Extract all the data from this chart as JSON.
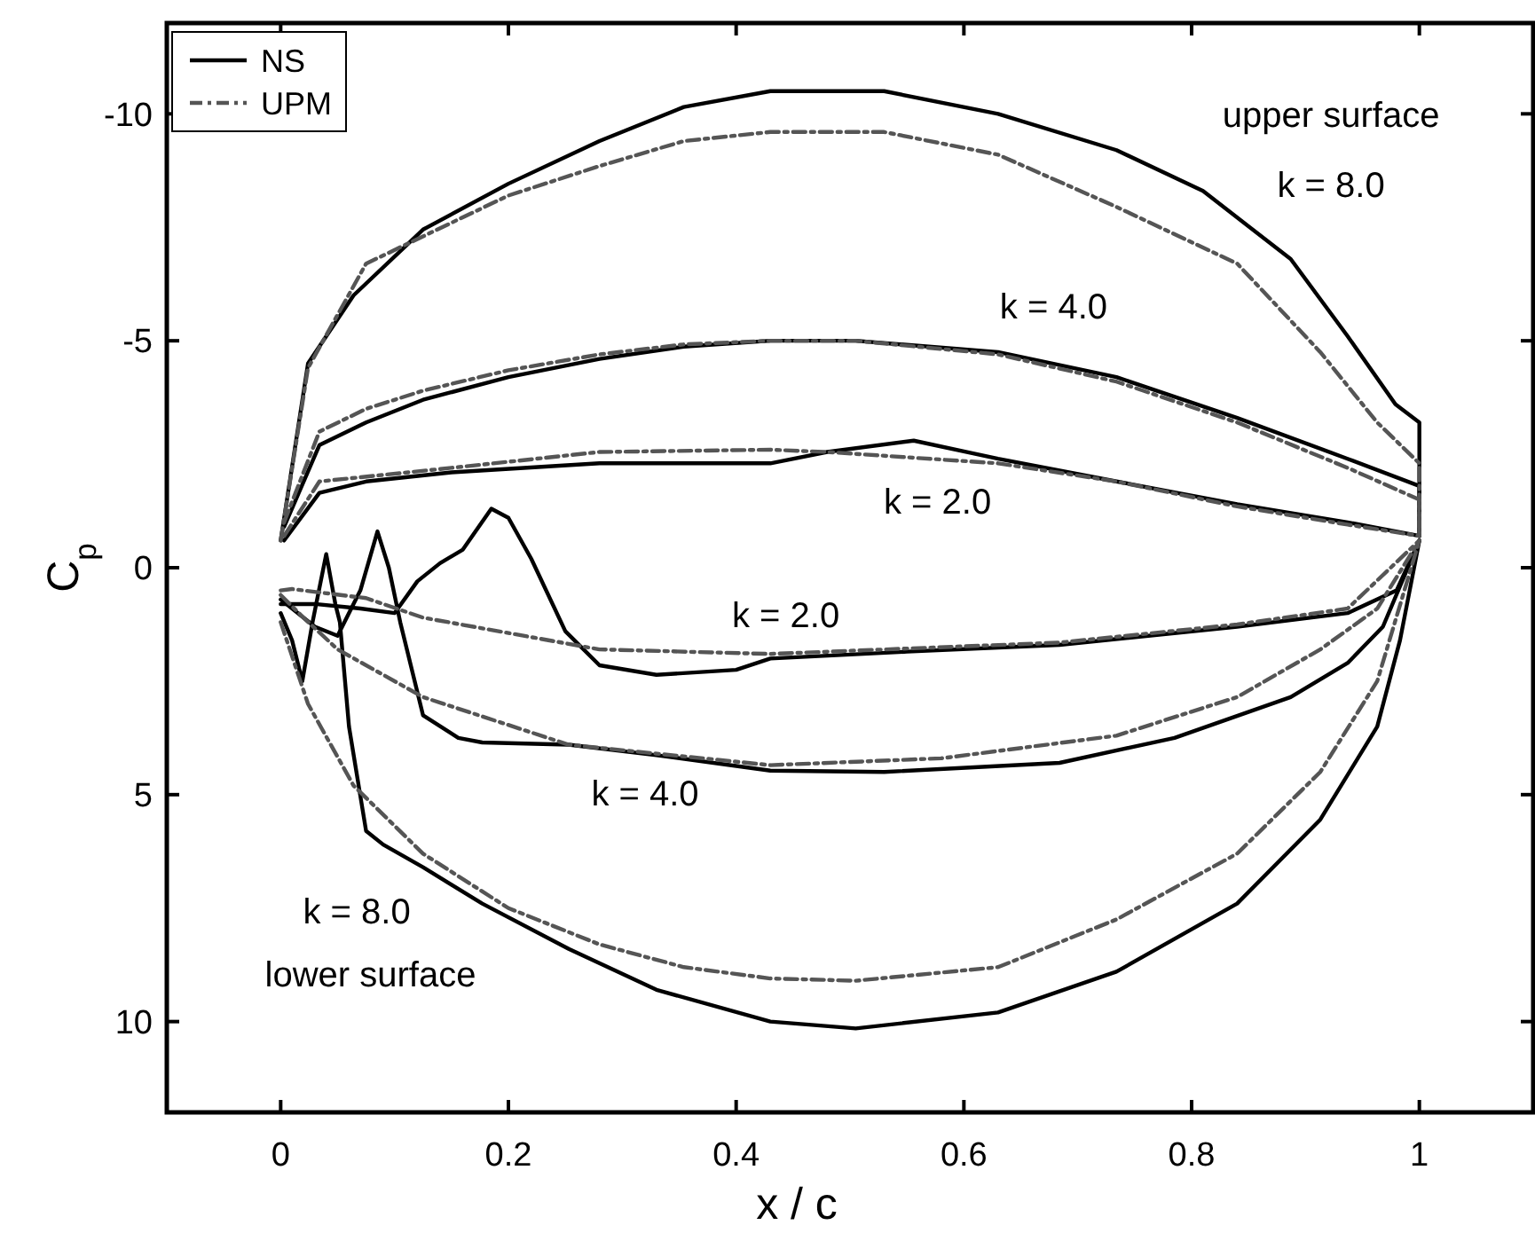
{
  "chart_data": {
    "type": "line",
    "xlabel": "x / c",
    "ylabel": "C$_{p}$",
    "xlim": [
      -0.1,
      1.1
    ],
    "ylim": [
      12,
      -12
    ],
    "xticks": [
      0,
      0.2,
      0.4,
      0.6,
      0.8,
      1
    ],
    "yticks": [
      -10,
      -5,
      0,
      5,
      10
    ],
    "grid": false,
    "legend": "top left",
    "marker": "none",
    "series": [
      {
        "name": "NS",
        "color": "#000000",
        "line_style": "solid",
        "x": [
          0,
          0.024,
          0.064,
          0.125,
          0.2,
          0.28,
          0.354,
          0.43,
          0.53,
          0.63,
          0.734,
          0.81,
          0.887,
          0.937,
          0.979,
          1.0,
          1.0
        ],
        "values": [
          -0.6,
          -4.5,
          -6.0,
          -7.45,
          -8.46,
          -9.4,
          -10.15,
          -10.5,
          -10.5,
          -10.0,
          -9.2,
          -8.3,
          -6.8,
          -5.1,
          -3.6,
          -3.2,
          -0.7
        ]
      },
      {
        "color": "#000000",
        "line_style": "solid",
        "x": [
          0.003,
          0.034,
          0.075,
          0.125,
          0.2,
          0.28,
          0.354,
          0.43,
          0.505,
          0.63,
          0.734,
          0.84,
          0.937,
          1.0,
          1.0
        ],
        "values": [
          -0.9,
          -2.7,
          -3.2,
          -3.7,
          -4.2,
          -4.6,
          -4.87,
          -5.0,
          -5.0,
          -4.75,
          -4.2,
          -3.3,
          -2.4,
          -1.8,
          -0.7
        ]
      },
      {
        "color": "#000000",
        "line_style": "solid",
        "x": [
          0.003,
          0.034,
          0.075,
          0.15,
          0.28,
          0.43,
          0.48,
          0.556,
          0.63,
          0.734,
          0.84,
          0.937,
          1.0
        ],
        "values": [
          -0.6,
          -1.65,
          -1.9,
          -2.1,
          -2.3,
          -2.3,
          -2.55,
          -2.8,
          -2.4,
          -1.9,
          -1.4,
          -1.0,
          -0.7
        ]
      },
      {
        "color": "#000000",
        "line_style": "solid",
        "x": [
          0,
          0.03,
          0.07,
          0.1,
          0.12,
          0.14,
          0.16,
          0.185,
          0.2,
          0.22,
          0.25,
          0.28,
          0.33,
          0.4,
          0.43,
          0.55,
          0.684,
          0.84,
          0.937,
          0.98,
          1.0
        ],
        "values": [
          0.8,
          0.8,
          0.9,
          1.0,
          0.3,
          -0.1,
          -0.4,
          -1.3,
          -1.1,
          -0.2,
          1.4,
          2.15,
          2.36,
          2.25,
          2.0,
          1.85,
          1.7,
          1.3,
          1.0,
          0.5,
          -0.6
        ]
      },
      {
        "color": "#000000",
        "line_style": "solid",
        "x": [
          0,
          0.03,
          0.05,
          0.07,
          0.085,
          0.095,
          0.105,
          0.125,
          0.156,
          0.177,
          0.253,
          0.33,
          0.43,
          0.53,
          0.684,
          0.785,
          0.887,
          0.937,
          0.968,
          1.0
        ],
        "values": [
          0.7,
          1.3,
          1.5,
          0.5,
          -0.8,
          0,
          1.2,
          3.25,
          3.75,
          3.85,
          3.9,
          4.13,
          4.47,
          4.5,
          4.3,
          3.75,
          2.85,
          2.1,
          1.3,
          -0.6
        ]
      },
      {
        "color": "#000000",
        "line_style": "solid",
        "x": [
          0,
          0.01,
          0.019,
          0.028,
          0.04,
          0.048,
          0.052,
          0.06,
          0.075,
          0.09,
          0.125,
          0.177,
          0.253,
          0.33,
          0.43,
          0.505,
          0.63,
          0.734,
          0.84,
          0.913,
          0.963,
          0.983,
          1.0
        ],
        "values": [
          1.0,
          1.6,
          2.5,
          1.2,
          -0.3,
          0.8,
          1.2,
          3.5,
          5.8,
          6.1,
          6.6,
          7.4,
          8.4,
          9.3,
          10.0,
          10.15,
          9.8,
          8.9,
          7.4,
          5.55,
          3.5,
          1.6,
          -0.6
        ]
      },
      {
        "name": "UPM",
        "color": "#555555",
        "line_style": "dashdot",
        "x": [
          0,
          0.024,
          0.075,
          0.125,
          0.2,
          0.28,
          0.354,
          0.43,
          0.53,
          0.63,
          0.734,
          0.84,
          0.913,
          0.963,
          1.0,
          1.0
        ],
        "values": [
          -0.6,
          -4.4,
          -6.7,
          -7.3,
          -8.2,
          -8.85,
          -9.4,
          -9.6,
          -9.6,
          -9.1,
          -7.95,
          -6.7,
          -4.75,
          -3.2,
          -2.3,
          -0.7
        ]
      },
      {
        "color": "#555555",
        "line_style": "dashdot",
        "x": [
          0.003,
          0.034,
          0.075,
          0.125,
          0.2,
          0.28,
          0.354,
          0.43,
          0.505,
          0.63,
          0.734,
          0.84,
          0.937,
          1.0,
          1.0
        ],
        "values": [
          -1.0,
          -3.0,
          -3.5,
          -3.9,
          -4.35,
          -4.7,
          -4.92,
          -5.0,
          -5.0,
          -4.7,
          -4.1,
          -3.2,
          -2.2,
          -1.5,
          -0.7
        ]
      },
      {
        "color": "#555555",
        "line_style": "dashdot",
        "x": [
          0.003,
          0.034,
          0.15,
          0.28,
          0.43,
          0.48,
          0.63,
          0.734,
          0.84,
          0.937,
          1.0
        ],
        "values": [
          -0.7,
          -1.9,
          -2.2,
          -2.55,
          -2.6,
          -2.55,
          -2.3,
          -1.9,
          -1.35,
          -0.95,
          -0.7
        ]
      },
      {
        "color": "#555555",
        "line_style": "dashdot",
        "x": [
          0,
          0.01,
          0.075,
          0.125,
          0.28,
          0.43,
          0.684,
          0.84,
          0.937,
          1.0
        ],
        "values": [
          0.5,
          0.47,
          0.67,
          1.1,
          1.8,
          1.9,
          1.65,
          1.25,
          0.9,
          -0.6
        ]
      },
      {
        "color": "#555555",
        "line_style": "dashdot",
        "x": [
          0,
          0.02,
          0.05,
          0.125,
          0.253,
          0.43,
          0.58,
          0.734,
          0.84,
          0.913,
          0.963,
          1.0
        ],
        "values": [
          0.6,
          1.1,
          1.8,
          2.85,
          3.9,
          4.35,
          4.2,
          3.7,
          2.85,
          1.8,
          0.9,
          -0.6
        ]
      },
      {
        "color": "#555555",
        "line_style": "dashdot",
        "x": [
          0,
          0.024,
          0.064,
          0.125,
          0.2,
          0.28,
          0.354,
          0.43,
          0.505,
          0.63,
          0.734,
          0.84,
          0.913,
          0.963,
          1.0
        ],
        "values": [
          1.2,
          3.0,
          4.8,
          6.3,
          7.5,
          8.3,
          8.8,
          9.05,
          9.1,
          8.8,
          7.75,
          6.3,
          4.5,
          2.5,
          -0.6
        ]
      }
    ],
    "annotations": [
      "upper surface",
      "k = 8.0",
      "k = 4.0",
      "k = 2.0",
      "k = 2.0",
      "k = 4.0",
      "k = 8.0",
      "lower surface"
    ]
  }
}
